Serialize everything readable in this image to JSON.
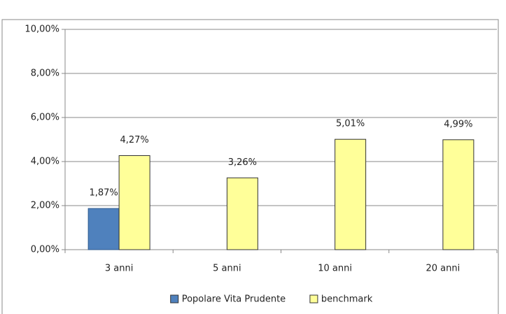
{
  "chart_data": {
    "type": "bar",
    "categories": [
      "3 anni",
      "5 anni",
      "10 anni",
      "20 anni"
    ],
    "series": [
      {
        "name": "Popolare Vita Prudente",
        "color": "#4f81bd",
        "values": [
          1.87,
          null,
          null,
          null
        ],
        "value_labels": [
          "1,87%",
          null,
          null,
          null
        ]
      },
      {
        "name": "benchmark",
        "color": "#ffff99",
        "values": [
          4.27,
          3.26,
          5.01,
          4.99
        ],
        "value_labels": [
          "4,27%",
          "3,26%",
          "5,01%",
          "4,99%"
        ]
      }
    ],
    "ylim": [
      0,
      10
    ],
    "yticks": [
      {
        "value": 0,
        "label": "0,00%"
      },
      {
        "value": 2,
        "label": "2,00%"
      },
      {
        "value": 4,
        "label": "4,00%"
      },
      {
        "value": 6,
        "label": "6,00%"
      },
      {
        "value": 8,
        "label": "8,00%"
      },
      {
        "value": 10,
        "label": "10,00%"
      }
    ],
    "grid": true
  }
}
